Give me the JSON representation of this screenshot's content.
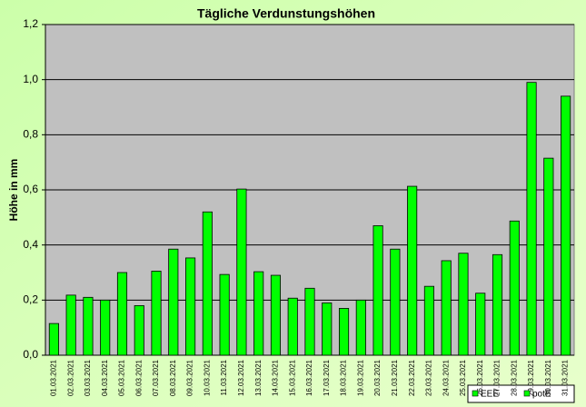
{
  "chart_data": {
    "type": "bar",
    "title": "Tägliche Verdunstungshöhen",
    "y_label": "Höhe in mm",
    "categories": [
      "01.03.2021",
      "02.03.2021",
      "03.03.2021",
      "04.03.2021",
      "05.03.2021",
      "06.03.2021",
      "07.03.2021",
      "08.03.2021",
      "09.03.2021",
      "10.03.2021",
      "11.03.2021",
      "12.03.2021",
      "13.03.2021",
      "14.03.2021",
      "15.03.2021",
      "16.03.2021",
      "17.03.2021",
      "18.03.2021",
      "19.03.2021",
      "20.03.2021",
      "21.03.2021",
      "22.03.2021",
      "23.03.2021",
      "24.03.2021",
      "25.03.2021",
      "26.03.2021",
      "27.03.2021",
      "28.03.2021",
      "29.03.2021",
      "30.03.2021",
      "31.03.2021"
    ],
    "series": [
      {
        "name": "EEE",
        "color": "#00ff00",
        "values": [
          null,
          null,
          null,
          null,
          null,
          null,
          null,
          null,
          null,
          null,
          null,
          null,
          null,
          null,
          null,
          null,
          null,
          null,
          null,
          null,
          null,
          null,
          null,
          null,
          null,
          null,
          null,
          null,
          null,
          null,
          null
        ]
      },
      {
        "name": "potE",
        "color": "#00ff00",
        "values": [
          0.115,
          0.218,
          0.21,
          0.2,
          0.3,
          0.18,
          0.305,
          0.385,
          0.353,
          0.52,
          0.293,
          0.603,
          0.303,
          0.29,
          0.207,
          0.243,
          0.19,
          0.17,
          0.2,
          0.47,
          0.385,
          0.613,
          0.25,
          0.343,
          0.37,
          0.225,
          0.365,
          0.487,
          0.99,
          0.715,
          0.94
        ]
      }
    ],
    "ylim": [
      0,
      1.2
    ],
    "yticks": [
      {
        "value": 0,
        "label": "0,0"
      },
      {
        "value": 0.2,
        "label": "0,2"
      },
      {
        "value": 0.4,
        "label": "0,4"
      },
      {
        "value": 0.6,
        "label": "0,6"
      },
      {
        "value": 0.8,
        "label": "0,8"
      },
      {
        "value": 1,
        "label": "1,0"
      },
      {
        "value": 1.2,
        "label": "1,2"
      }
    ],
    "grid": true,
    "legend": "bottom-right"
  }
}
